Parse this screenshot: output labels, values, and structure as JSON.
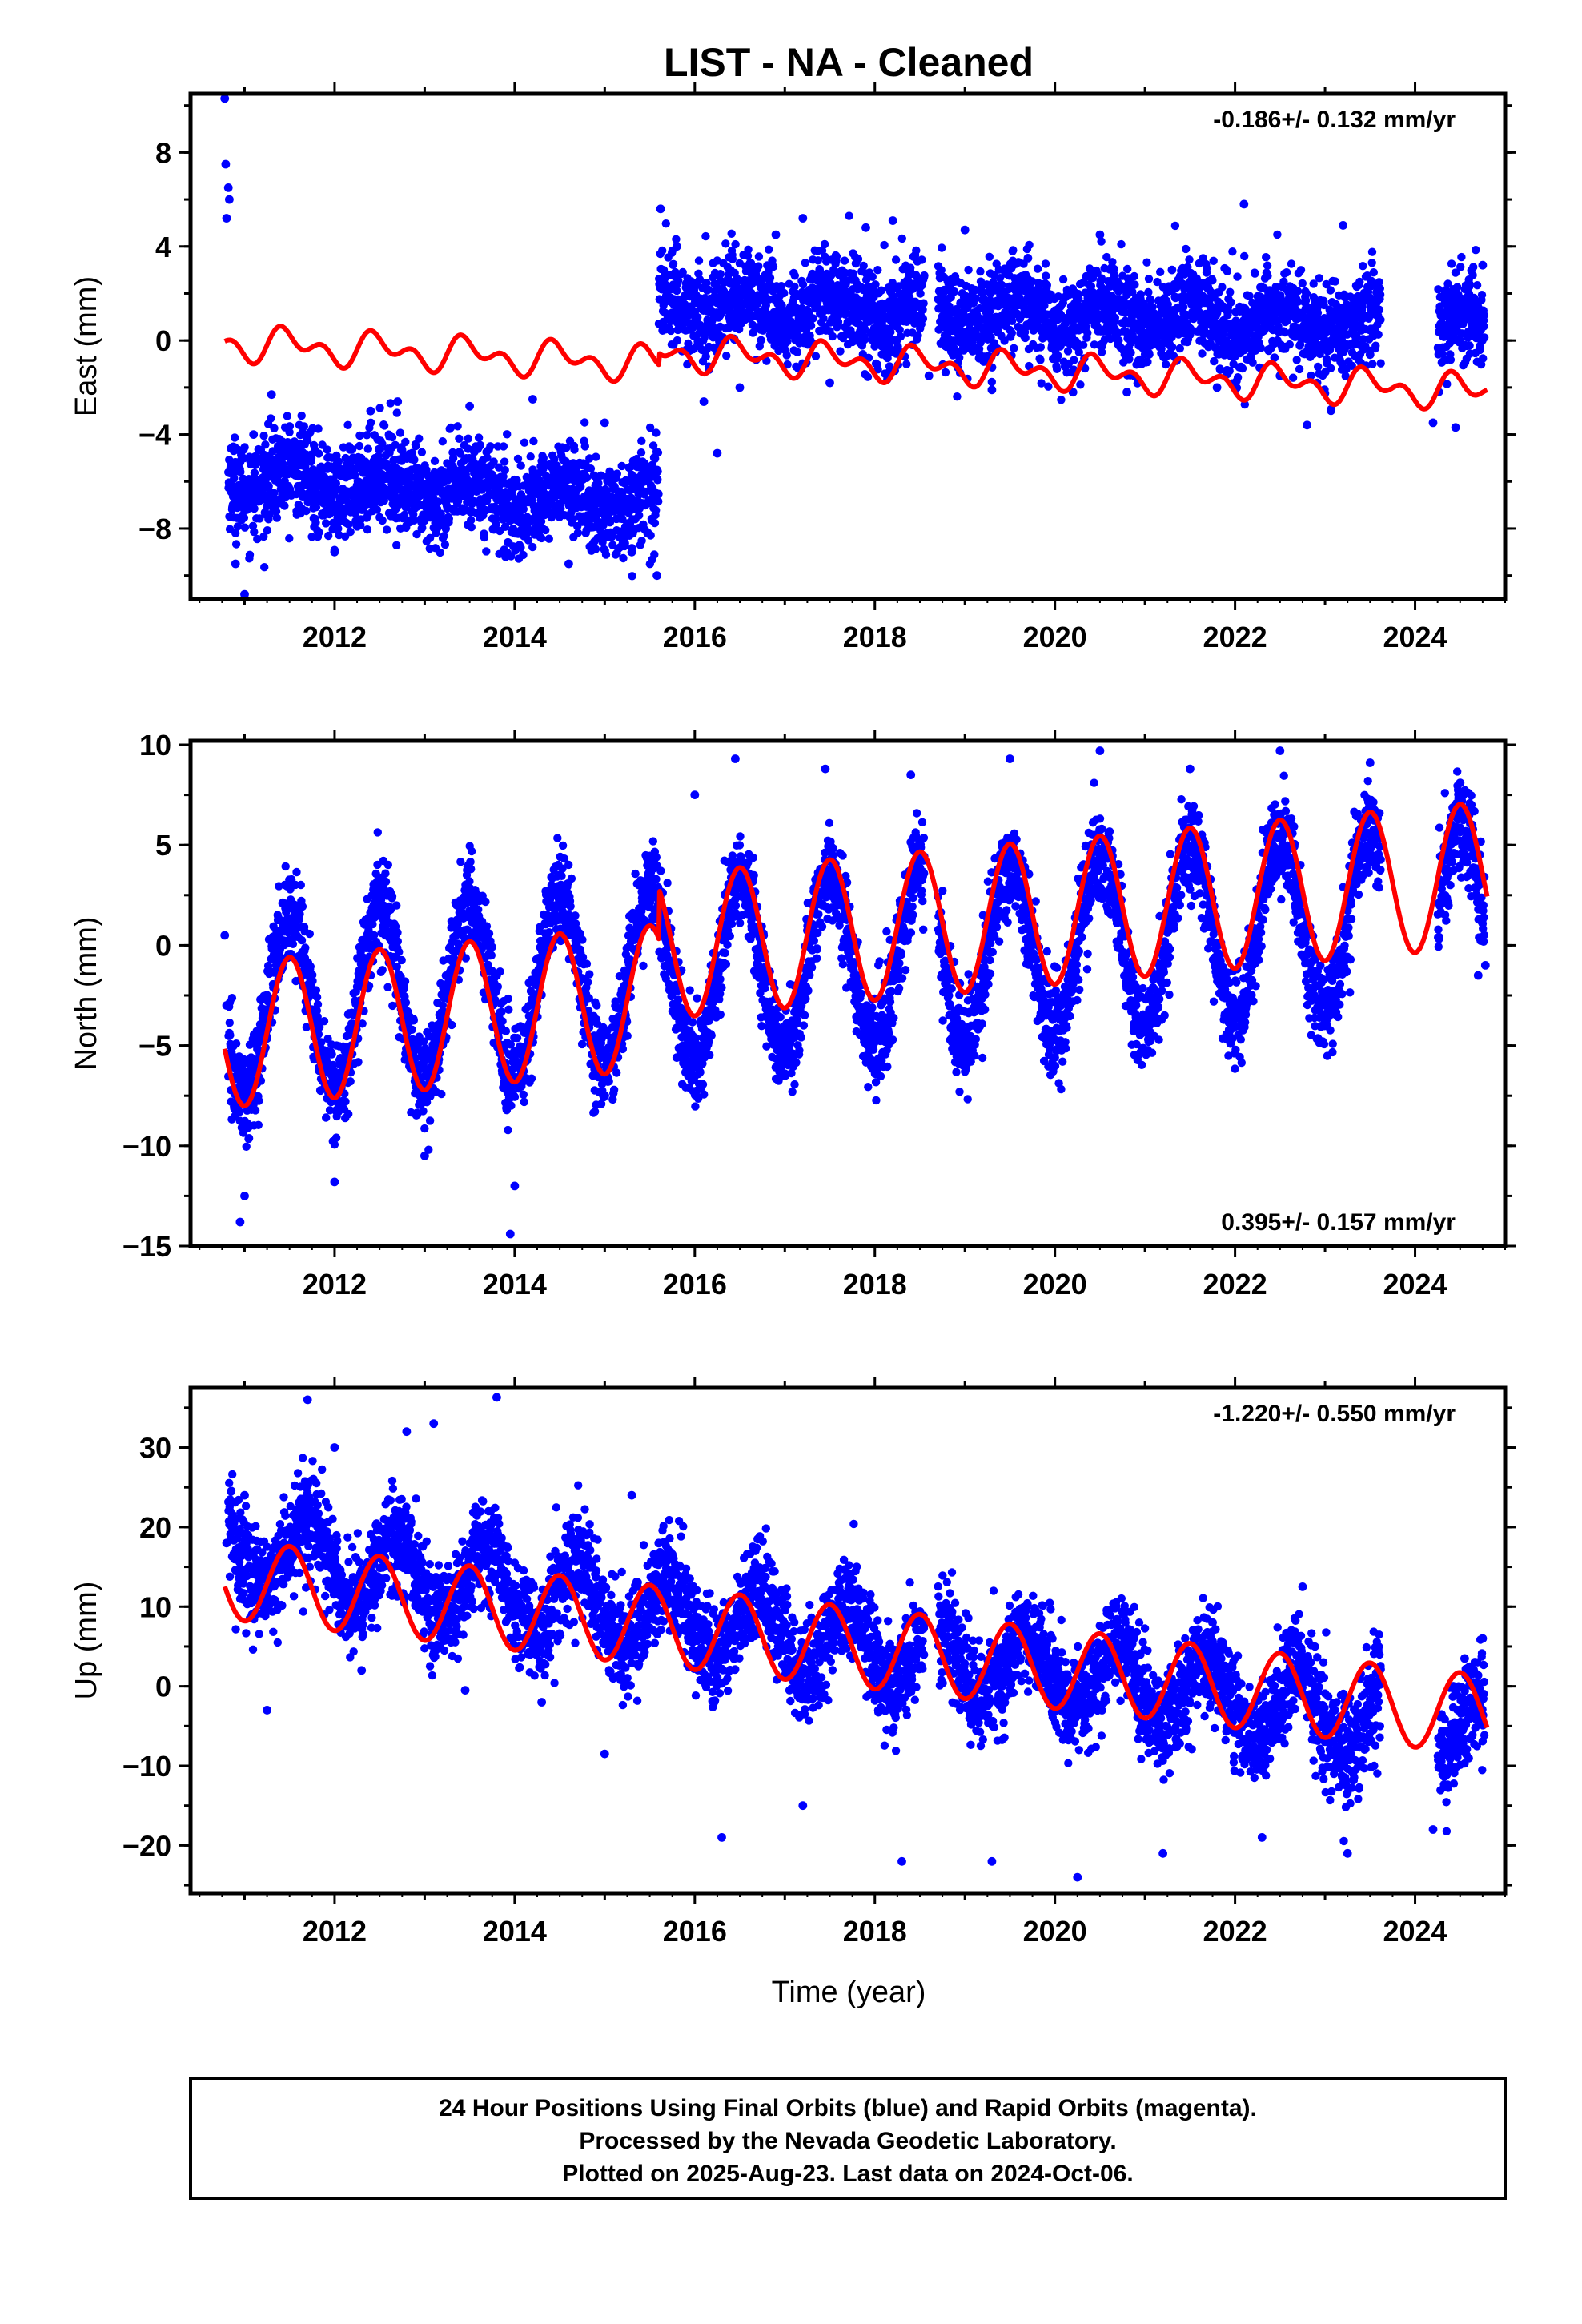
{
  "chart_data": {
    "title": "LIST  - NA - Cleaned",
    "xlabel": "Time (year)",
    "x_ticks": [
      2012,
      2014,
      2016,
      2018,
      2020,
      2022,
      2024
    ],
    "series_colors": {
      "final_orbits": "#0000ff",
      "model": "#ff0000"
    },
    "panels": [
      {
        "component": "east",
        "type": "scatter",
        "ylabel": "East (mm)",
        "ylim": [
          -11,
          10.5
        ],
        "xlim": [
          2010.4,
          2025.0
        ],
        "yticks": [
          -8,
          -4,
          0,
          4,
          8
        ],
        "rate_label": "-0.186+/- 0.132 mm/yr",
        "rate_position": "top-right",
        "points": [
          [
            2010.78,
            10.3
          ],
          [
            2010.79,
            7.5
          ],
          [
            2010.8,
            5.2
          ],
          [
            2010.82,
            6.5
          ],
          [
            2010.83,
            6.0
          ],
          [
            2010.9,
            -9.5
          ],
          [
            2011.0,
            -10.8
          ],
          [
            2011.1,
            -4.0
          ],
          [
            2011.3,
            -2.3
          ],
          [
            2011.6,
            -7.0
          ],
          [
            2012.0,
            -9.0
          ],
          [
            2012.4,
            -3.0
          ],
          [
            2012.7,
            -2.6
          ],
          [
            2013.1,
            -7.5
          ],
          [
            2013.5,
            -2.8
          ],
          [
            2013.9,
            -9.2
          ],
          [
            2014.2,
            -2.5
          ],
          [
            2014.6,
            -9.5
          ],
          [
            2015.0,
            -3.5
          ],
          [
            2015.3,
            -9.0
          ],
          [
            2015.58,
            -10.0
          ],
          [
            2015.62,
            5.6
          ],
          [
            2015.8,
            4.0
          ],
          [
            2016.1,
            -2.6
          ],
          [
            2016.25,
            -4.8
          ],
          [
            2016.5,
            -2.0
          ],
          [
            2016.9,
            4.5
          ],
          [
            2017.2,
            5.2
          ],
          [
            2017.5,
            -1.8
          ],
          [
            2017.9,
            4.8
          ],
          [
            2018.2,
            5.1
          ],
          [
            2018.6,
            -1.5
          ],
          [
            2019.0,
            4.7
          ],
          [
            2019.3,
            -2.1
          ],
          [
            2019.7,
            3.5
          ],
          [
            2020.2,
            -2.2
          ],
          [
            2020.5,
            4.5
          ],
          [
            2020.8,
            -2.2
          ],
          [
            2021.3,
            3.0
          ],
          [
            2021.8,
            -2.0
          ],
          [
            2022.1,
            5.8
          ],
          [
            2022.5,
            -1.5
          ],
          [
            2022.8,
            -3.6
          ],
          [
            2023.2,
            4.9
          ],
          [
            2023.5,
            -0.6
          ],
          [
            2024.2,
            -3.5
          ],
          [
            2024.45,
            -3.7
          ],
          [
            2024.6,
            2.3
          ],
          [
            2024.75,
            3.2
          ]
        ],
        "model": {
          "start": -0.1,
          "trend_per_yr": -0.186,
          "annual_amp": 0.5,
          "semiannual_amp": 0.45,
          "offsets": [
            {
              "year": 2015.6,
              "size": 0.5
            }
          ]
        }
      },
      {
        "component": "north",
        "type": "scatter",
        "ylabel": "North (mm)",
        "ylim": [
          -15,
          10.2
        ],
        "xlim": [
          2010.4,
          2025.0
        ],
        "yticks": [
          -15,
          -10,
          -5,
          0,
          5,
          10
        ],
        "rate_label": "0.395+/- 0.157 mm/yr",
        "rate_position": "bottom-right",
        "points": [
          [
            2010.78,
            0.5
          ],
          [
            2010.8,
            -3.0
          ],
          [
            2010.95,
            -13.8
          ],
          [
            2011.0,
            -12.5
          ],
          [
            2011.5,
            1.0
          ],
          [
            2012.0,
            -11.8
          ],
          [
            2012.5,
            2.6
          ],
          [
            2013.0,
            -10.5
          ],
          [
            2013.5,
            2.4
          ],
          [
            2013.95,
            -14.4
          ],
          [
            2014.0,
            -12.0
          ],
          [
            2014.5,
            3.5
          ],
          [
            2015.0,
            -7.5
          ],
          [
            2015.5,
            3.6
          ],
          [
            2015.8,
            -5.6
          ],
          [
            2016.0,
            7.5
          ],
          [
            2016.45,
            9.3
          ],
          [
            2016.9,
            -4.0
          ],
          [
            2017.45,
            8.8
          ],
          [
            2017.9,
            -3.5
          ],
          [
            2018.4,
            8.5
          ],
          [
            2018.9,
            -4.4
          ],
          [
            2019.5,
            9.3
          ],
          [
            2019.9,
            -3.5
          ],
          [
            2020.5,
            9.7
          ],
          [
            2020.9,
            -3.0
          ],
          [
            2021.5,
            8.8
          ],
          [
            2021.95,
            -4.9
          ],
          [
            2022.5,
            9.7
          ],
          [
            2022.9,
            -2.0
          ],
          [
            2023.5,
            9.1
          ],
          [
            2024.5,
            8.1
          ],
          [
            2024.7,
            -1.5
          ],
          [
            2024.78,
            -1.0
          ]
        ],
        "model": {
          "start": -4.5,
          "trend_per_yr": 0.395,
          "annual_amp": 3.6,
          "semiannual_amp": 0.0,
          "offsets": [
            {
              "year": 2015.6,
              "size": 2.5
            }
          ]
        }
      },
      {
        "component": "up",
        "type": "scatter",
        "ylabel": "Up (mm)",
        "ylim": [
          -26,
          37.5
        ],
        "xlim": [
          2010.4,
          2025.0
        ],
        "yticks": [
          -20,
          -10,
          0,
          10,
          20,
          30
        ],
        "rate_label": "-1.220+/- 0.550 mm/yr",
        "rate_position": "top-right",
        "points": [
          [
            2010.8,
            18.0
          ],
          [
            2011.0,
            24.0
          ],
          [
            2011.25,
            -3.0
          ],
          [
            2011.7,
            36.0
          ],
          [
            2012.0,
            30.0
          ],
          [
            2012.3,
            2.0
          ],
          [
            2012.8,
            32.0
          ],
          [
            2013.1,
            33.0
          ],
          [
            2013.45,
            -0.5
          ],
          [
            2013.8,
            36.3
          ],
          [
            2014.3,
            -2.0
          ],
          [
            2014.8,
            19.0
          ],
          [
            2015.3,
            24.0
          ],
          [
            2015.0,
            -8.5
          ],
          [
            2015.6,
            18.0
          ],
          [
            2016.3,
            -19.0
          ],
          [
            2016.7,
            18.5
          ],
          [
            2017.2,
            -15.0
          ],
          [
            2017.75,
            9.0
          ],
          [
            2018.3,
            -22.0
          ],
          [
            2018.8,
            8.0
          ],
          [
            2019.3,
            -22.0
          ],
          [
            2019.75,
            5.0
          ],
          [
            2020.25,
            -24.0
          ],
          [
            2020.7,
            5.0
          ],
          [
            2021.2,
            -21.0
          ],
          [
            2021.75,
            8.0
          ],
          [
            2022.3,
            -19.0
          ],
          [
            2022.75,
            12.5
          ],
          [
            2023.25,
            -21.0
          ],
          [
            2024.2,
            -18.0
          ],
          [
            2024.55,
            3.5
          ],
          [
            2024.75,
            6.0
          ]
        ],
        "model": {
          "start": 13.5,
          "trend_per_yr": -1.22,
          "annual_amp": 5.0,
          "semiannual_amp": 0.0,
          "offsets": []
        }
      }
    ]
  },
  "footer": {
    "line1": "24 Hour Positions Using Final Orbits (blue) and Rapid Orbits (magenta).",
    "line2": "Processed by the Nevada Geodetic Laboratory.",
    "line3": "Plotted on 2025-Aug-23. Last data on 2024-Oct-06."
  }
}
